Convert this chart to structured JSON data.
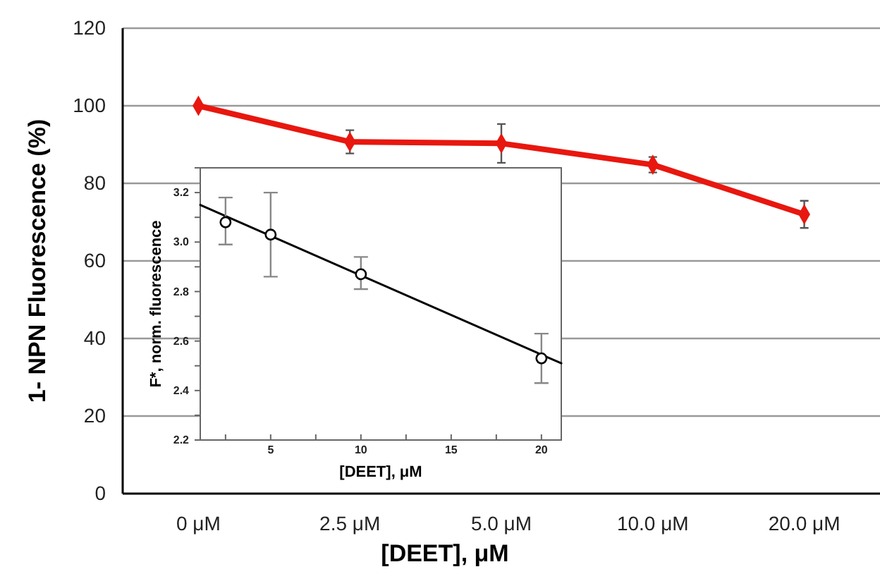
{
  "chart_data": [
    {
      "type": "line",
      "xlabel": "[DEET], μM",
      "ylabel": "1- NPN Fluorescence (%)",
      "categories": [
        "0 μM",
        "2.5 μM",
        "5.0 μM",
        "10.0 μM",
        "20.0 μM"
      ],
      "series": [
        {
          "color": "#e8170f",
          "values": [
            100,
            90.7,
            90.3,
            84.8,
            72
          ],
          "errors": [
            null,
            3,
            5,
            2,
            3.5
          ]
        }
      ],
      "ylim": [
        0,
        120
      ],
      "yticks": [
        0,
        20,
        40,
        60,
        80,
        100,
        120
      ],
      "grid": "y",
      "marker": "diamond",
      "line_style": "solid"
    },
    {
      "type": "scatter",
      "xlabel": "[DEET], μM",
      "ylabel": "F*, norm. fluorescence",
      "marker": "circle",
      "series": [
        {
          "color": "#000000",
          "x": [
            2.5,
            5,
            10,
            20
          ],
          "values": [
            3.08,
            3.03,
            2.87,
            2.53
          ],
          "errors": [
            [
              2.99,
              3.18
            ],
            [
              2.86,
              3.2
            ],
            [
              2.81,
              2.94
            ],
            [
              2.43,
              2.63
            ]
          ]
        },
        {
          "type": "line",
          "marker": "none",
          "color": "#000000",
          "x": [
            1.1,
            21.1
          ],
          "values": [
            3.15,
            2.51
          ]
        }
      ],
      "xlim": [
        1.1,
        21.1
      ],
      "xticks": [
        {
          "value": 2.5,
          "label": null
        },
        5,
        {
          "value": 7.5,
          "label": null
        },
        10,
        {
          "value": 12.5,
          "label": null
        },
        15,
        {
          "value": 17.5,
          "label": null
        },
        20
      ],
      "ylim": [
        2.2,
        3.3
      ],
      "yticks": [
        2.2,
        {
          "value": 2.3,
          "label": null
        },
        2.4,
        {
          "value": 2.5,
          "label": null
        },
        2.6,
        {
          "value": 2.7,
          "label": null
        },
        2.8,
        {
          "value": 2.9,
          "label": null
        },
        {
          "value": 3,
          "label": "3.0"
        },
        {
          "value": 3.1,
          "label": null
        },
        3.2
      ]
    }
  ]
}
